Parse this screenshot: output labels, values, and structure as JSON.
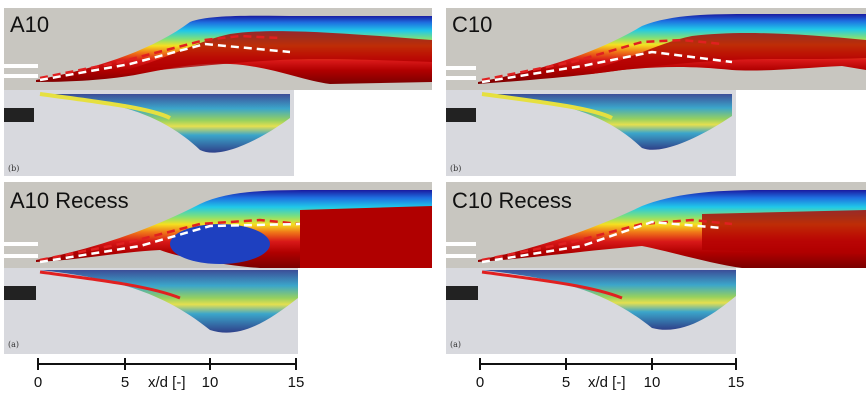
{
  "panels": [
    {
      "title": "A10",
      "photo_label": "(b)"
    },
    {
      "title": "C10",
      "photo_label": "(b)"
    },
    {
      "title": "A10 Recess",
      "photo_label": "(a)"
    },
    {
      "title": "C10 Recess",
      "photo_label": "(a)"
    }
  ],
  "axis": {
    "label": "x/d [-]",
    "ticks": [
      "0",
      "5",
      "10",
      "15"
    ]
  },
  "colors": {
    "background_gray": "#c8c6c0",
    "jet_core": "#b00000",
    "photo_bg": "#d8d9de",
    "dash_red": "#e02020",
    "dash_white": "#ffffff"
  }
}
